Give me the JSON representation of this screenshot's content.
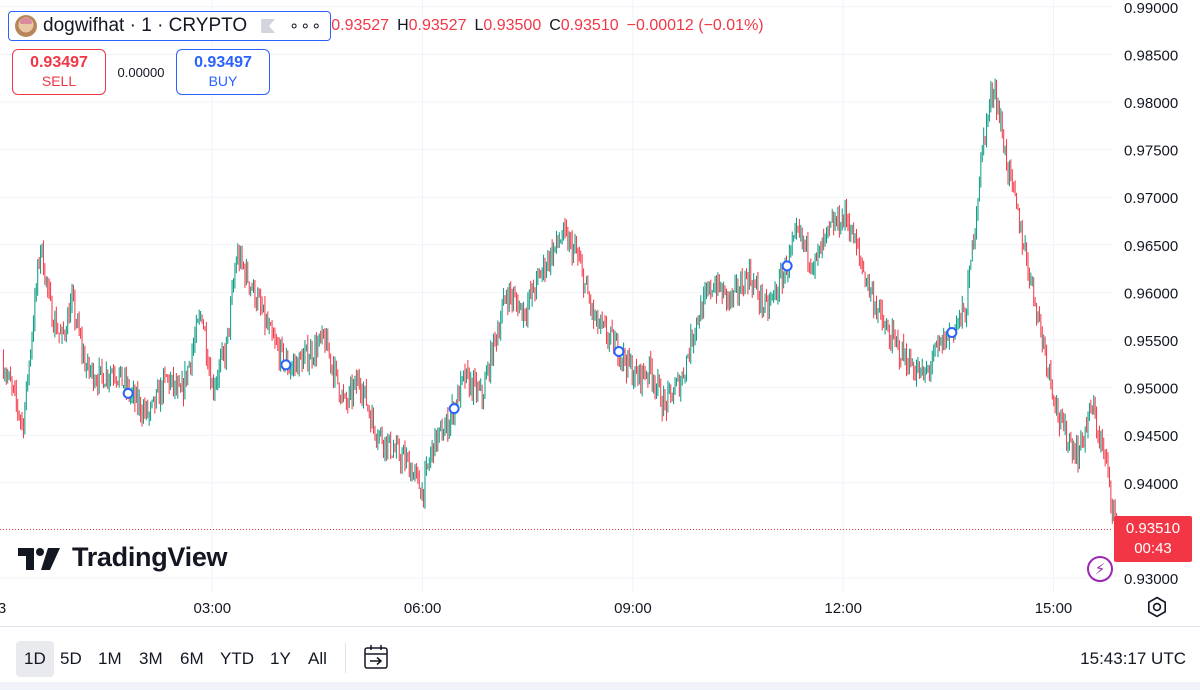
{
  "header": {
    "symbol_title": "dogwifhat · 1 · CRYPTO",
    "more_label": "∘∘∘",
    "ohlc": {
      "o_value": "0.93527",
      "h_label": "H",
      "h_value": "0.93527",
      "l_label": "L",
      "l_value": "0.93500",
      "c_label": "C",
      "c_value": "0.93510",
      "change": "−0.00012 (−0.01%)"
    }
  },
  "trade": {
    "sell_price": "0.93497",
    "sell_label": "SELL",
    "spread": "0.00000",
    "buy_price": "0.93497",
    "buy_label": "BUY"
  },
  "brand": {
    "logo_text": "TradingView"
  },
  "price_tag": {
    "price": "0.93510",
    "countdown": "00:43"
  },
  "bottom": {
    "timeframes": [
      "1D",
      "5D",
      "1M",
      "3M",
      "6M",
      "YTD",
      "1Y",
      "All"
    ],
    "active_timeframe": "1D",
    "clock": "15:43:17 UTC"
  },
  "colors": {
    "up": "#089981",
    "down": "#f23645",
    "marker": "#2962ff",
    "accent": "#2962ff"
  },
  "icons": [
    "coin-avatar-icon",
    "flag-icon",
    "more-icon",
    "lightning-icon",
    "settings-icon",
    "goto-date-icon",
    "tradingview-logo-icon"
  ],
  "chart_data": {
    "type": "candlestick",
    "title": "",
    "xlabel": "",
    "ylabel": "",
    "ylim": [
      0.925,
      0.99
    ],
    "y_ticks": [
      "0.99000",
      "0.98500",
      "0.98000",
      "0.97500",
      "0.97000",
      "0.96500",
      "0.96000",
      "0.95500",
      "0.95000",
      "0.94500",
      "0.94000",
      "0.93000"
    ],
    "y_tick_values": [
      0.99,
      0.985,
      0.98,
      0.975,
      0.97,
      0.965,
      0.96,
      0.955,
      0.95,
      0.945,
      0.94,
      0.93
    ],
    "x_ticks": [
      "3",
      "03:00",
      "06:00",
      "09:00",
      "12:00",
      "15:00"
    ],
    "x_tick_hours": [
      0,
      3,
      6,
      9,
      12,
      15
    ],
    "last_price": 0.9351,
    "grid": true,
    "series": [
      {
        "name": "",
        "path_hours": [
          0,
          0.3,
          0.55,
          0.7,
          0.85,
          1.0,
          1.2,
          1.4,
          1.6,
          1.85,
          2.1,
          2.35,
          2.55,
          2.85,
          3.0,
          3.2,
          3.35,
          3.6,
          3.85,
          4.1,
          4.3,
          4.6,
          4.9,
          5.1,
          5.3,
          5.5,
          5.8,
          6.0,
          6.15,
          6.35,
          6.6,
          6.85,
          7.0,
          7.2,
          7.45,
          7.75,
          8.0,
          8.2,
          8.45,
          8.8,
          9.05,
          9.25,
          9.45,
          9.7,
          9.9,
          10.15,
          10.4,
          10.65,
          10.9,
          11.1,
          11.35,
          11.6,
          11.85,
          12.05,
          12.3,
          12.6,
          12.9,
          13.15,
          13.35,
          13.55,
          13.75,
          14.0,
          14.15,
          14.35,
          14.55,
          14.85,
          15.1,
          15.35,
          15.55,
          15.75,
          15.9
        ],
        "path_values": [
          0.953,
          0.946,
          0.965,
          0.958,
          0.955,
          0.959,
          0.952,
          0.951,
          0.952,
          0.949,
          0.947,
          0.951,
          0.949,
          0.958,
          0.95,
          0.954,
          0.964,
          0.96,
          0.955,
          0.952,
          0.953,
          0.955,
          0.948,
          0.951,
          0.946,
          0.944,
          0.942,
          0.939,
          0.944,
          0.946,
          0.951,
          0.949,
          0.954,
          0.96,
          0.958,
          0.963,
          0.966,
          0.964,
          0.957,
          0.954,
          0.951,
          0.952,
          0.948,
          0.951,
          0.957,
          0.961,
          0.959,
          0.962,
          0.958,
          0.961,
          0.966,
          0.963,
          0.967,
          0.968,
          0.962,
          0.956,
          0.953,
          0.951,
          0.954,
          0.956,
          0.958,
          0.976,
          0.982,
          0.973,
          0.966,
          0.955,
          0.946,
          0.943,
          0.948,
          0.942,
          0.9351
        ]
      }
    ],
    "markers_hours": [
      1.8,
      4.05,
      6.45,
      8.8,
      11.2,
      13.55
    ]
  }
}
